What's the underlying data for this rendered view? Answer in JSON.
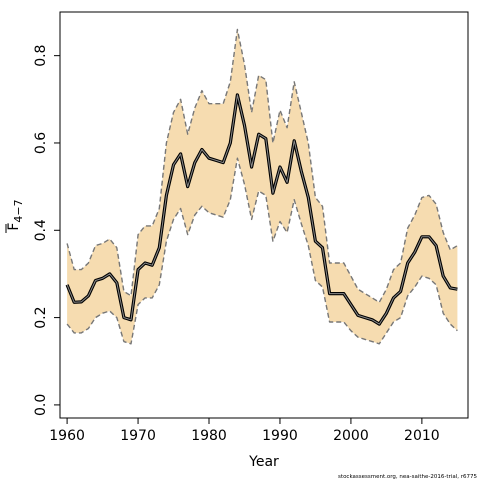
{
  "chart_data": {
    "type": "line",
    "xlabel": "Year",
    "ylabel": "F",
    "ylabel_subscript": "4−7",
    "footnote": "stockassessment.org, nea-saithe-2016-trial, r6775",
    "xlim": [
      1959,
      2016.5
    ],
    "ylim": [
      -0.03,
      0.9
    ],
    "x_ticks": [
      1960,
      1970,
      1980,
      1990,
      2000,
      2010
    ],
    "x_tick_labels": [
      "1960",
      "1970",
      "1980",
      "1990",
      "2000",
      "2010"
    ],
    "y_ticks": [
      0.0,
      0.2,
      0.4,
      0.6,
      0.8
    ],
    "y_tick_labels": [
      "0.0",
      "0.2",
      "0.4",
      "0.6",
      "0.8"
    ],
    "colors": {
      "band": "#f6dcb0",
      "bound": "#777777",
      "estimate": "#000000"
    },
    "x": [
      1960,
      1961,
      1962,
      1963,
      1964,
      1965,
      1966,
      1967,
      1968,
      1969,
      1970,
      1971,
      1972,
      1973,
      1974,
      1975,
      1976,
      1977,
      1978,
      1979,
      1980,
      1981,
      1982,
      1983,
      1984,
      1985,
      1986,
      1987,
      1988,
      1989,
      1990,
      1991,
      1992,
      1993,
      1994,
      1995,
      1996,
      1997,
      1998,
      1999,
      2000,
      2001,
      2002,
      2003,
      2004,
      2005,
      2006,
      2007,
      2008,
      2009,
      2010,
      2011,
      2012,
      2013,
      2014,
      2015
    ],
    "series": [
      {
        "name": "",
        "role": "estimate",
        "values": [
          0.275,
          0.235,
          0.236,
          0.25,
          0.285,
          0.29,
          0.3,
          0.28,
          0.2,
          0.195,
          0.31,
          0.325,
          0.32,
          0.36,
          0.48,
          0.55,
          0.575,
          0.5,
          0.555,
          0.585,
          0.565,
          0.56,
          0.555,
          0.6,
          0.71,
          0.64,
          0.545,
          0.62,
          0.61,
          0.485,
          0.545,
          0.51,
          0.605,
          0.535,
          0.475,
          0.375,
          0.36,
          0.255,
          0.255,
          0.255,
          0.23,
          0.205,
          0.2,
          0.195,
          0.185,
          0.21,
          0.245,
          0.26,
          0.325,
          0.35,
          0.385,
          0.385,
          0.365,
          0.295,
          0.268,
          0.265
        ]
      },
      {
        "name": "",
        "role": "upper",
        "values": [
          0.37,
          0.31,
          0.31,
          0.325,
          0.365,
          0.37,
          0.38,
          0.36,
          0.26,
          0.25,
          0.39,
          0.41,
          0.41,
          0.45,
          0.6,
          0.67,
          0.7,
          0.62,
          0.68,
          0.72,
          0.69,
          0.69,
          0.69,
          0.74,
          0.86,
          0.78,
          0.67,
          0.755,
          0.745,
          0.6,
          0.675,
          0.635,
          0.74,
          0.67,
          0.6,
          0.475,
          0.455,
          0.325,
          0.325,
          0.325,
          0.295,
          0.265,
          0.255,
          0.245,
          0.235,
          0.265,
          0.31,
          0.325,
          0.405,
          0.435,
          0.475,
          0.48,
          0.46,
          0.395,
          0.355,
          0.365
        ]
      },
      {
        "name": "",
        "role": "lower",
        "values": [
          0.185,
          0.165,
          0.165,
          0.175,
          0.2,
          0.21,
          0.215,
          0.2,
          0.145,
          0.14,
          0.23,
          0.245,
          0.245,
          0.275,
          0.375,
          0.425,
          0.45,
          0.39,
          0.435,
          0.455,
          0.44,
          0.435,
          0.43,
          0.47,
          0.565,
          0.505,
          0.425,
          0.49,
          0.48,
          0.375,
          0.42,
          0.395,
          0.47,
          0.415,
          0.365,
          0.285,
          0.27,
          0.19,
          0.19,
          0.19,
          0.17,
          0.155,
          0.15,
          0.145,
          0.14,
          0.165,
          0.19,
          0.2,
          0.25,
          0.27,
          0.295,
          0.29,
          0.275,
          0.21,
          0.185,
          0.17
        ]
      }
    ]
  }
}
